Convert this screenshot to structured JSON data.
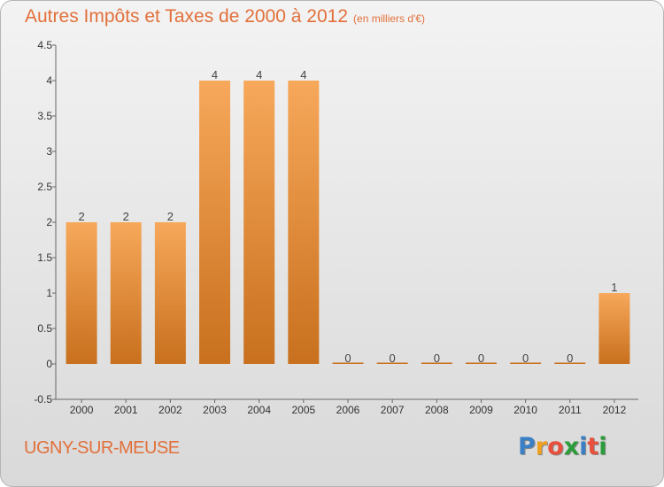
{
  "title": "Autres Impôts et Taxes de 2000 à 2012",
  "subtitle": "(en milliers d'€)",
  "commune": "UGNY-SUR-MEUSE",
  "logo": {
    "letters": [
      "P",
      "r",
      "o",
      "x",
      "i",
      "t",
      "i"
    ],
    "colors": [
      "#3b7fc4",
      "#f0a020",
      "#e84f3c",
      "#2a9d3a",
      "#3b7fc4",
      "#e84f3c",
      "#2a9d3a"
    ]
  },
  "colors": {
    "bar_light": "#f7a85a",
    "bar_dark": "#c8701e",
    "title": "#e2703a"
  },
  "chart_data": {
    "type": "bar",
    "title": "Autres Impôts et Taxes de 2000 à 2012",
    "subtitle": "(en milliers d'€)",
    "categories": [
      "2000",
      "2001",
      "2002",
      "2003",
      "2004",
      "2005",
      "2006",
      "2007",
      "2008",
      "2009",
      "2010",
      "2011",
      "2012"
    ],
    "values": [
      2,
      2,
      2,
      4,
      4,
      4,
      0,
      0,
      0,
      0,
      0,
      0,
      1
    ],
    "data_labels": [
      "2",
      "2",
      "2",
      "4",
      "4",
      "4",
      "0",
      "0",
      "0",
      "0",
      "0",
      "0",
      "1"
    ],
    "ylim": [
      -0.5,
      4.5
    ],
    "yticks": [
      "-0.5",
      "0",
      "0.5",
      "1",
      "1.5",
      "2",
      "2.5",
      "3",
      "3.5",
      "4",
      "4.5"
    ],
    "ytick_values": [
      -0.5,
      0,
      0.5,
      1,
      1.5,
      2,
      2.5,
      3,
      3.5,
      4,
      4.5
    ],
    "xlabel": "",
    "ylabel": "",
    "grid": false,
    "legend": "none"
  }
}
